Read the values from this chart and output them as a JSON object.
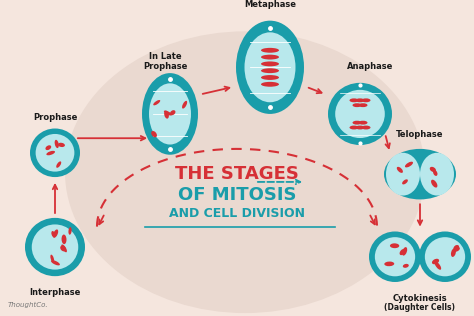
{
  "bg_color": "#f5e6de",
  "blob_color": "#ead9d0",
  "teal_dark": "#1a9daa",
  "teal_light": "#8dd6db",
  "teal_inner": "#b8e8ec",
  "red_title": "#d63036",
  "red_arrow": "#d63036",
  "teal_arrow": "#1a9daa",
  "text_color": "#1a1a1a",
  "watermark": "ThoughtCo.",
  "title1": "THE STAGES",
  "title2": "OF MITOSIS",
  "title3": "AND CELL DIVISION"
}
